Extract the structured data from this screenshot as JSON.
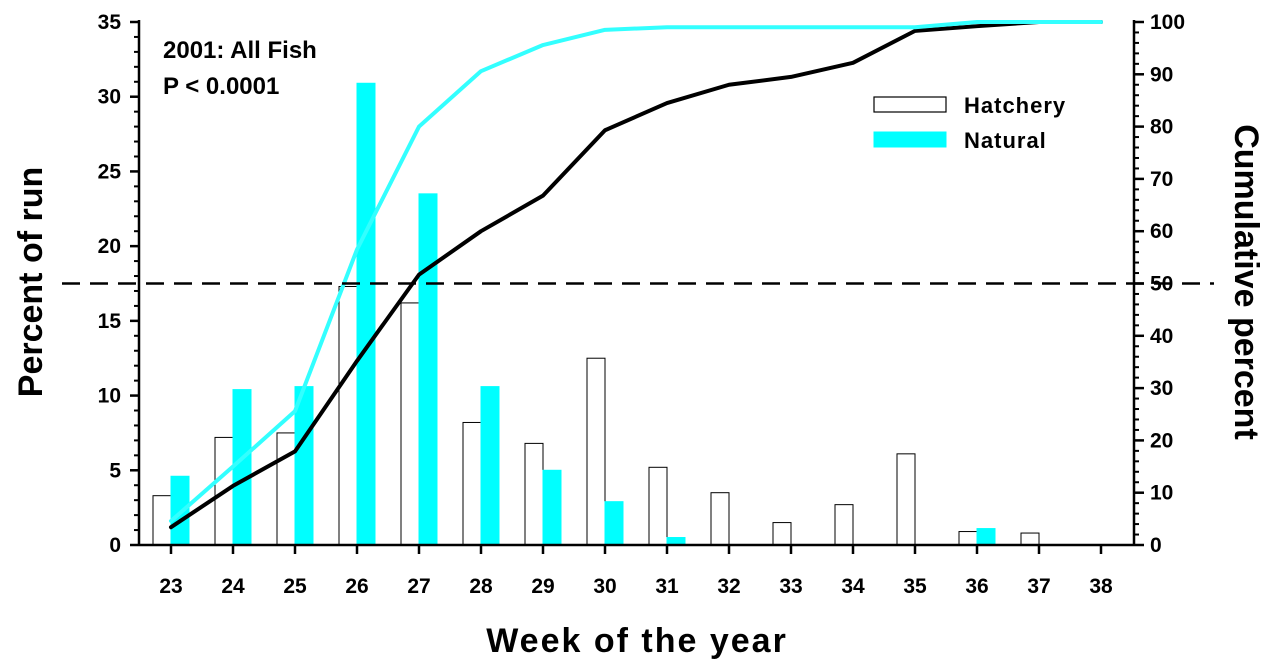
{
  "chart_data": {
    "type": "bar",
    "annotation_lines": [
      "2001:  All Fish",
      "P < 0.0001"
    ],
    "xlabel": "Week of the year",
    "ylabel": "Percent of run",
    "y2label": "Cumulative percent",
    "categories": [
      "23",
      "24",
      "25",
      "26",
      "27",
      "28",
      "29",
      "30",
      "31",
      "32",
      "33",
      "34",
      "35",
      "36",
      "37",
      "38"
    ],
    "ylim": [
      0,
      35
    ],
    "y2lim": [
      0,
      100
    ],
    "yticks": [
      "0",
      "5",
      "10",
      "15",
      "20",
      "25",
      "30",
      "35"
    ],
    "y2ticks": [
      "0",
      "10",
      "20",
      "30",
      "40",
      "50",
      "60",
      "70",
      "80",
      "90",
      "100"
    ],
    "reference_line": {
      "axis": "y2",
      "value": 50,
      "style": "dashed"
    },
    "legend_position": "top-right",
    "series": [
      {
        "name": "Hatchery",
        "type": "bar",
        "axis": "y",
        "fill": "#ffffff",
        "stroke": "#000000",
        "values": [
          3.3,
          7.2,
          7.5,
          17.3,
          16.2,
          8.2,
          6.8,
          12.5,
          5.2,
          3.5,
          1.5,
          2.7,
          6.1,
          0.9,
          0.8,
          0
        ]
      },
      {
        "name": "Natural",
        "type": "bar",
        "axis": "y",
        "fill": "#00ffff",
        "stroke": "#00ffff",
        "values": [
          4.6,
          10.4,
          10.6,
          30.9,
          23.5,
          10.6,
          5.0,
          2.9,
          0.5,
          0,
          0,
          0,
          0,
          1.1,
          0,
          0
        ]
      },
      {
        "type": "line",
        "axis": "y2",
        "color": "#000000",
        "legend": false,
        "values": [
          3.4,
          11.3,
          17.9,
          35.2,
          51.7,
          60.0,
          66.8,
          79.3,
          84.5,
          88.0,
          89.5,
          92.2,
          98.3,
          99.2,
          100,
          100
        ]
      },
      {
        "type": "line",
        "axis": "y2",
        "color": "#33ffff",
        "legend": false,
        "values": [
          4.6,
          15.0,
          25.6,
          56.5,
          80.0,
          90.6,
          95.6,
          98.5,
          99.0,
          99.0,
          99.0,
          99.0,
          99.0,
          100,
          100,
          100
        ]
      }
    ]
  }
}
